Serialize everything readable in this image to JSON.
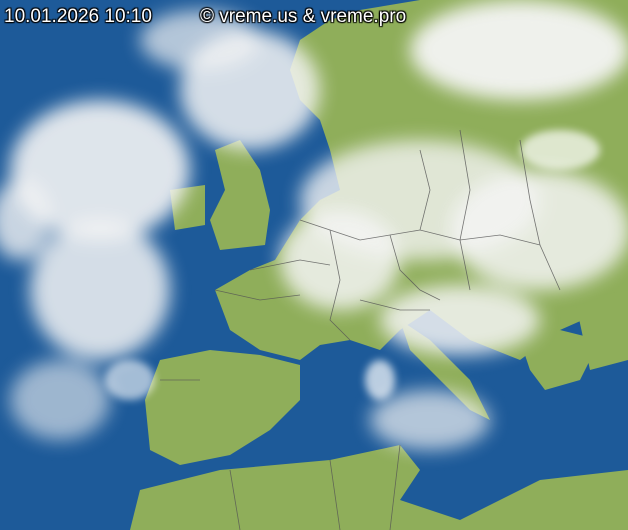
{
  "timestamp": "10.01.2026 10:10",
  "copyright": "© vreme.us & vreme.pro",
  "colors": {
    "sea": "#1a4f8f",
    "land": "#8fae5a",
    "cloud": "#f2f2f2",
    "border": "#555555"
  }
}
